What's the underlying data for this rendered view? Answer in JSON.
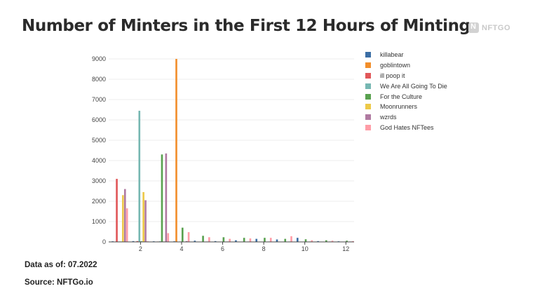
{
  "title": "Number of Minters in the First 12 Hours of Minting",
  "logo_text": "NFTGO",
  "footer": {
    "date": "Data as of: 07.2022",
    "source": "Source: NFTGo.io"
  },
  "chart_data": {
    "type": "bar",
    "xlim": [
      0.45,
      12.4
    ],
    "ylim": [
      0,
      9000
    ],
    "x_ticks": [
      2,
      4,
      6,
      8,
      10,
      12
    ],
    "y_ticks": [
      0,
      1000,
      2000,
      3000,
      4000,
      5000,
      6000,
      7000,
      8000,
      9000
    ],
    "grid": true,
    "legend_position": "right",
    "x": [
      1,
      2,
      3,
      4,
      5,
      6,
      7,
      8,
      9,
      10,
      11,
      12
    ],
    "series": [
      {
        "name": "killabear",
        "color": "#3b6ea5",
        "values": [
          30,
          40,
          30,
          30,
          60,
          40,
          80,
          150,
          120,
          200,
          40,
          30
        ]
      },
      {
        "name": "goblintown",
        "color": "#f28e2b",
        "values": [
          0,
          0,
          0,
          9000,
          0,
          0,
          0,
          0,
          0,
          0,
          0,
          0
        ]
      },
      {
        "name": "ill poop it",
        "color": "#e15759",
        "values": [
          3100,
          40,
          20,
          10,
          5,
          5,
          5,
          5,
          5,
          5,
          5,
          5
        ]
      },
      {
        "name": "We Are All Going To Die",
        "color": "#76b7b2",
        "values": [
          20,
          6450,
          30,
          20,
          10,
          10,
          10,
          10,
          10,
          10,
          10,
          10
        ]
      },
      {
        "name": "For the Culture",
        "color": "#59a14f",
        "values": [
          20,
          30,
          4300,
          700,
          300,
          230,
          200,
          200,
          150,
          130,
          80,
          60
        ]
      },
      {
        "name": "Moonrunners",
        "color": "#edc948",
        "values": [
          2300,
          2450,
          20,
          10,
          5,
          5,
          5,
          5,
          5,
          5,
          5,
          5
        ]
      },
      {
        "name": "wzrds",
        "color": "#b07aa1",
        "values": [
          2600,
          2050,
          4350,
          40,
          20,
          20,
          20,
          20,
          20,
          20,
          20,
          20
        ]
      },
      {
        "name": "God Hates NFTees",
        "color": "#ff9da7",
        "values": [
          1650,
          30,
          430,
          480,
          230,
          150,
          170,
          200,
          280,
          80,
          60,
          40
        ]
      }
    ]
  }
}
